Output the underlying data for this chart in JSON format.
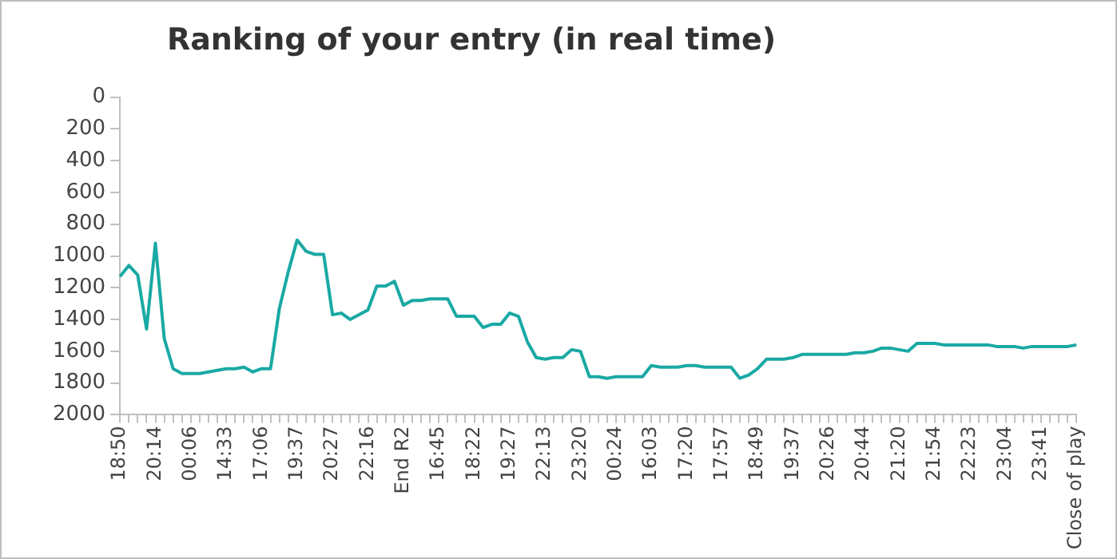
{
  "chart_data": {
    "type": "line",
    "title": "Ranking of your entry (in real time)",
    "categories": [
      "18:50",
      null,
      null,
      null,
      "20:14",
      null,
      null,
      null,
      "00:06",
      null,
      null,
      null,
      "14:33",
      null,
      null,
      null,
      "17:06",
      null,
      null,
      null,
      "19:37",
      null,
      null,
      null,
      "20:27",
      null,
      null,
      null,
      "22:16",
      null,
      null,
      null,
      "End R2",
      null,
      null,
      null,
      "16:45",
      null,
      null,
      null,
      "18:22",
      null,
      null,
      null,
      "19:27",
      null,
      null,
      null,
      "22:13",
      null,
      null,
      null,
      "23:20",
      null,
      null,
      null,
      "00:24",
      null,
      null,
      null,
      "16:03",
      null,
      null,
      null,
      "17:20",
      null,
      null,
      null,
      "17:57",
      null,
      null,
      null,
      "18:49",
      null,
      null,
      null,
      "19:37",
      null,
      null,
      null,
      "20:26",
      null,
      null,
      null,
      "20:44",
      null,
      null,
      null,
      "21:20",
      null,
      null,
      null,
      "21:54",
      null,
      null,
      null,
      "22:23",
      null,
      null,
      null,
      "23:04",
      null,
      null,
      null,
      "23:41",
      null,
      null,
      null,
      "Close of play"
    ],
    "series": [
      {
        "color": "#1aa9a4",
        "values": [
          1130,
          1060,
          1120,
          1460,
          920,
          1520,
          1710,
          1740,
          1740,
          1740,
          1730,
          1720,
          1710,
          1710,
          1700,
          1730,
          1710,
          1710,
          1330,
          1100,
          900,
          970,
          990,
          990,
          1370,
          1360,
          1400,
          1370,
          1340,
          1190,
          1190,
          1160,
          1310,
          1280,
          1280,
          1270,
          1270,
          1270,
          1380,
          1380,
          1380,
          1450,
          1430,
          1430,
          1360,
          1380,
          1540,
          1640,
          1650,
          1640,
          1640,
          1590,
          1600,
          1760,
          1760,
          1770,
          1760,
          1760,
          1760,
          1760,
          1690,
          1700,
          1700,
          1700,
          1690,
          1690,
          1700,
          1700,
          1700,
          1700,
          1770,
          1750,
          1710,
          1650,
          1650,
          1650,
          1640,
          1620,
          1620,
          1620,
          1620,
          1620,
          1620,
          1610,
          1610,
          1600,
          1580,
          1580,
          1590,
          1600,
          1550,
          1550,
          1550,
          1560,
          1560,
          1560,
          1560,
          1560,
          1560,
          1570,
          1570,
          1570,
          1580,
          1570,
          1570,
          1570,
          1570,
          1570,
          1560
        ]
      }
    ],
    "ylim": [
      2000,
      0
    ],
    "yticks": [
      0,
      200,
      400,
      600,
      800,
      1000,
      1200,
      1400,
      1600,
      1800,
      2000
    ],
    "grid": false,
    "legend": false,
    "marker": "none",
    "line_style": "solid"
  }
}
